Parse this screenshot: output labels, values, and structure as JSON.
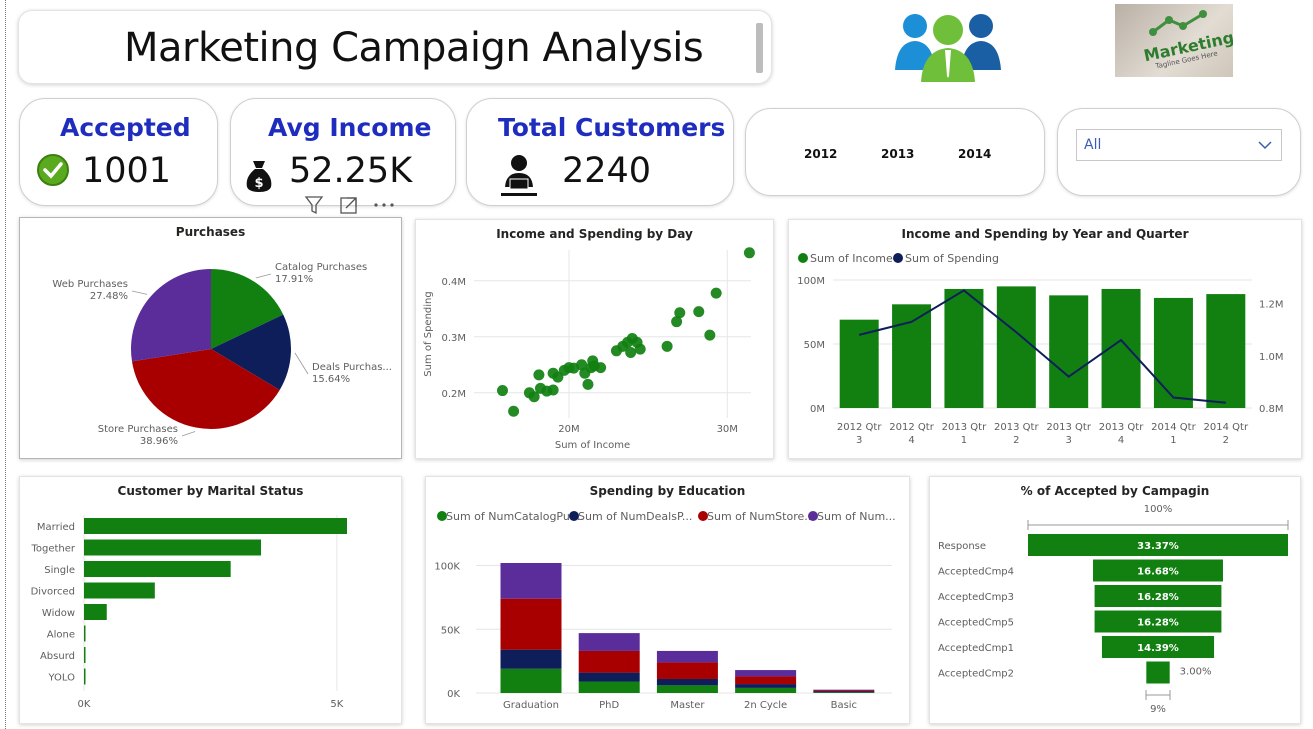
{
  "header": {
    "title": "Marketing Campaign Analysis",
    "logo_text": "Marketing",
    "logo_tagline": "Tagline Goes Here"
  },
  "kpis": {
    "accepted": {
      "label": "Accepted",
      "value": "1001"
    },
    "avg_income": {
      "label": "Avg Income",
      "value": "52.25K"
    },
    "total_customers": {
      "label": "Total Customers",
      "value": "2240"
    }
  },
  "filters": {
    "years": [
      "2012",
      "2013",
      "2014"
    ],
    "dropdown_value": "All"
  },
  "colors": {
    "green": "#118011",
    "navy": "#0d1e5b",
    "red": "#a80000",
    "purple": "#5b2d9a",
    "kpi_blue": "#1f2dbf"
  },
  "chart_data": [
    {
      "id": "purchases",
      "type": "pie",
      "title": "Purchases",
      "slices": [
        {
          "label": "Catalog Purchases",
          "pct_label": "17.91%",
          "value": 17.91
        },
        {
          "label": "Deals Purchas...",
          "pct_label": "15.64%",
          "value": 15.64
        },
        {
          "label": "Store Purchases",
          "pct_label": "38.96%",
          "value": 38.96
        },
        {
          "label": "Web Purchases",
          "pct_label": "27.48%",
          "value": 27.48
        }
      ]
    },
    {
      "id": "income_spending_day",
      "type": "scatter",
      "title": "Income and Spending by Day",
      "xlabel": "Sum of Income",
      "ylabel": "Sum of Spending",
      "xticks": [
        {
          "v": 20,
          "label": "20M"
        },
        {
          "v": 30,
          "label": "30M"
        }
      ],
      "yticks": [
        {
          "v": 0.2,
          "label": "0.2M"
        },
        {
          "v": 0.3,
          "label": "0.3M"
        },
        {
          "v": 0.4,
          "label": "0.4M"
        }
      ],
      "xlim": [
        14,
        31.5
      ],
      "ylim": [
        0.155,
        0.455
      ],
      "points": [
        [
          15.8,
          0.204
        ],
        [
          16.5,
          0.167
        ],
        [
          17.5,
          0.2
        ],
        [
          17.8,
          0.193
        ],
        [
          18.2,
          0.208
        ],
        [
          18.1,
          0.232
        ],
        [
          18.6,
          0.203
        ],
        [
          19.0,
          0.205
        ],
        [
          19.0,
          0.235
        ],
        [
          19.3,
          0.228
        ],
        [
          19.7,
          0.24
        ],
        [
          20.0,
          0.245
        ],
        [
          20.3,
          0.244
        ],
        [
          20.8,
          0.25
        ],
        [
          21.0,
          0.235
        ],
        [
          21.2,
          0.215
        ],
        [
          21.4,
          0.245
        ],
        [
          21.5,
          0.257
        ],
        [
          21.6,
          0.248
        ],
        [
          22.0,
          0.245
        ],
        [
          23.0,
          0.275
        ],
        [
          23.4,
          0.283
        ],
        [
          23.7,
          0.29
        ],
        [
          23.9,
          0.272
        ],
        [
          24.0,
          0.297
        ],
        [
          24.3,
          0.29
        ],
        [
          24.5,
          0.278
        ],
        [
          26.2,
          0.283
        ],
        [
          26.8,
          0.327
        ],
        [
          27.0,
          0.343
        ],
        [
          28.2,
          0.345
        ],
        [
          28.9,
          0.303
        ],
        [
          29.3,
          0.378
        ],
        [
          31.4,
          0.45
        ]
      ]
    },
    {
      "id": "income_spending_yq",
      "type": "bar",
      "title": "Income  and Spending by Year and Quarter",
      "legend": [
        "Sum of  Income",
        "Sum of Spending"
      ],
      "categories": [
        "2012 Qtr 3",
        "2012 Qtr 4",
        "2013 Qtr 1",
        "2013 Qtr 2",
        "2013 Qtr 3",
        "2013 Qtr 4",
        "2014 Qtr 1",
        "2014 Qtr 2"
      ],
      "y_left_ticks": [
        {
          "v": 0,
          "label": "0M"
        },
        {
          "v": 50,
          "label": "50M"
        },
        {
          "v": 100,
          "label": "100M"
        }
      ],
      "y_right_ticks": [
        {
          "v": 0.8,
          "label": "0.8M"
        },
        {
          "v": 1.0,
          "label": "1.0M"
        },
        {
          "v": 1.2,
          "label": "1.2M"
        }
      ],
      "ylim_left": [
        0,
        100
      ],
      "ylim_right": [
        0.8,
        1.29
      ],
      "income_M": [
        69,
        81,
        93,
        95,
        88,
        93,
        86,
        89
      ],
      "spending_M": [
        1.08,
        1.13,
        1.25,
        1.09,
        0.92,
        1.06,
        0.84,
        0.82
      ]
    },
    {
      "id": "marital",
      "type": "bar",
      "orientation": "horizontal",
      "title": "Customer by Marital Status",
      "categories": [
        "Married",
        "Together",
        "Single",
        "Divorced",
        "Widow",
        "Alone",
        "Absurd",
        "YOLO"
      ],
      "values": [
        5200,
        3500,
        2900,
        1400,
        450,
        20,
        15,
        10
      ],
      "xticks": [
        {
          "v": 0,
          "label": "0K"
        },
        {
          "v": 5000,
          "label": "5K"
        }
      ],
      "xlim": [
        0,
        5200
      ]
    },
    {
      "id": "education",
      "type": "bar",
      "stacked": true,
      "title": "Spending by Education",
      "legend": [
        "Sum of NumCatalogPur...",
        "Sum of NumDealsP...",
        "Sum of NumStore...",
        "Sum of Num..."
      ],
      "categories": [
        "Graduation",
        "PhD",
        "Master",
        "2n Cycle",
        "Basic"
      ],
      "series": [
        {
          "name": "Sum of NumCatalogPur...",
          "values": [
            19000,
            9000,
            6000,
            4000,
            500
          ]
        },
        {
          "name": "Sum of NumDealsP...",
          "values": [
            15000,
            7000,
            5000,
            3000,
            700
          ]
        },
        {
          "name": "Sum of NumStore...",
          "values": [
            40000,
            17000,
            13000,
            6000,
            800
          ]
        },
        {
          "name": "Sum of Num...",
          "values": [
            28000,
            14000,
            9000,
            5000,
            600
          ]
        }
      ],
      "yticks": [
        {
          "v": 0,
          "label": "0K"
        },
        {
          "v": 50000,
          "label": "50K"
        },
        {
          "v": 100000,
          "label": "100K"
        }
      ],
      "ylim": [
        0,
        102000
      ]
    },
    {
      "id": "accepted_campaign",
      "type": "funnel",
      "title": "% of Accepted by Campagin",
      "top_label": "100%",
      "bottom_label": "9%",
      "stages": [
        {
          "label": "Response",
          "value": 33.37,
          "value_label": "33.37%"
        },
        {
          "label": "AcceptedCmp4",
          "value": 16.68,
          "value_label": "16.68%"
        },
        {
          "label": "AcceptedCmp3",
          "value": 16.28,
          "value_label": "16.28%"
        },
        {
          "label": "AcceptedCmp5",
          "value": 16.28,
          "value_label": "16.28%"
        },
        {
          "label": "AcceptedCmp1",
          "value": 14.39,
          "value_label": "14.39%"
        },
        {
          "label": "AcceptedCmp2",
          "value": 3.0,
          "value_label": "3.00%"
        }
      ]
    }
  ]
}
